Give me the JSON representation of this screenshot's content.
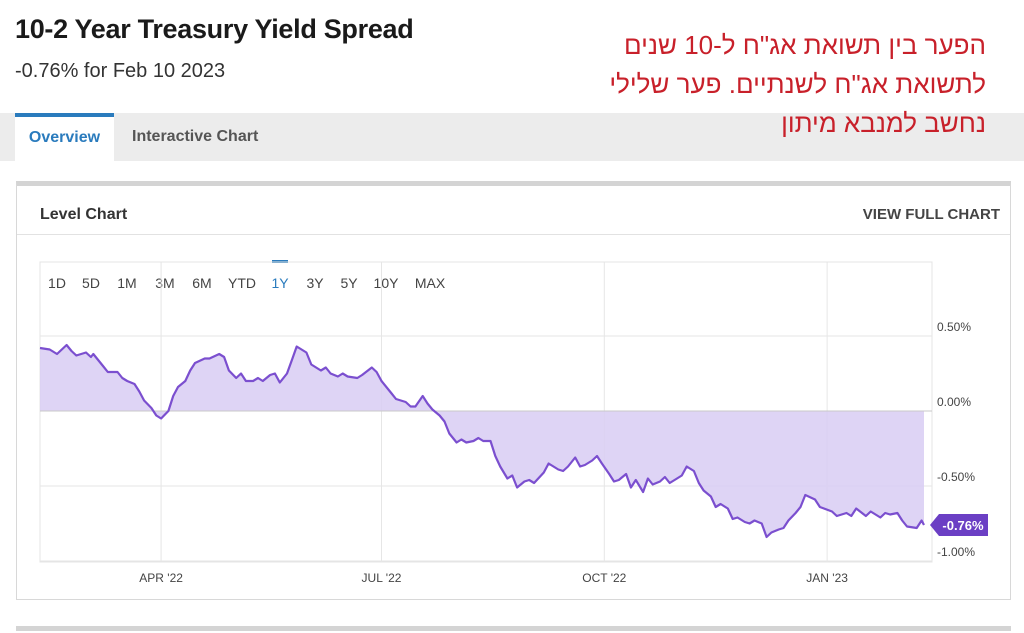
{
  "header": {
    "title": "10-2 Year Treasury Yield Spread",
    "subtitle": "-0.76% for Feb 10 2023"
  },
  "annotation": {
    "lines": [
      "הפער בין תשואת אג\"ח ל-10 שנים",
      "לתשואת אג\"ח לשנתיים. פער שלילי",
      "נחשב למנבא מיתון"
    ]
  },
  "tabs": [
    {
      "label": "Overview",
      "active": true
    },
    {
      "label": "Interactive Chart",
      "active": false
    }
  ],
  "card": {
    "title": "Level Chart",
    "view_full_label": "VIEW FULL CHART"
  },
  "range_buttons": [
    {
      "label": "1D",
      "active": false
    },
    {
      "label": "5D",
      "active": false
    },
    {
      "label": "1M",
      "active": false
    },
    {
      "label": "3M",
      "active": false
    },
    {
      "label": "6M",
      "active": false
    },
    {
      "label": "YTD",
      "active": false
    },
    {
      "label": "1Y",
      "active": true
    },
    {
      "label": "3Y",
      "active": false
    },
    {
      "label": "5Y",
      "active": false
    },
    {
      "label": "10Y",
      "active": false
    },
    {
      "label": "MAX",
      "active": false
    }
  ],
  "colors": {
    "line": "#7b4fcf",
    "fill": "#d8ccf3",
    "badge": "#6b3fc4",
    "accent": "#2a7bbd",
    "annotation": "#c8202a"
  },
  "chart_data": {
    "type": "area",
    "title": "10-2 Year Treasury Yield Spread",
    "ylabel": "",
    "xlabel": "",
    "ylim": [
      -1.0,
      0.6
    ],
    "yticks": [
      "0.50%",
      "0.00%",
      "-0.50%",
      "-1.00%"
    ],
    "ytick_values": [
      0.5,
      0.0,
      -0.5,
      -1.0
    ],
    "xticks": [
      "APR '22",
      "JUL '22",
      "OCT '22",
      "JAN '23"
    ],
    "xtick_dates": [
      "2022-04-01",
      "2022-07-01",
      "2022-10-01",
      "2023-01-01"
    ],
    "last_value_label": "-0.76%",
    "grid": true,
    "series": [
      {
        "values": [
          [
            "2022-02-10",
            0.42
          ],
          [
            "2022-02-14",
            0.41
          ],
          [
            "2022-02-17",
            0.38
          ],
          [
            "2022-02-21",
            0.44
          ],
          [
            "2022-02-23",
            0.4
          ],
          [
            "2022-02-25",
            0.37
          ],
          [
            "2022-03-01",
            0.39
          ],
          [
            "2022-03-03",
            0.36
          ],
          [
            "2022-03-04",
            0.38
          ],
          [
            "2022-03-08",
            0.3
          ],
          [
            "2022-03-10",
            0.26
          ],
          [
            "2022-03-14",
            0.26
          ],
          [
            "2022-03-16",
            0.22
          ],
          [
            "2022-03-18",
            0.2
          ],
          [
            "2022-03-21",
            0.18
          ],
          [
            "2022-03-23",
            0.13
          ],
          [
            "2022-03-25",
            0.07
          ],
          [
            "2022-03-28",
            0.02
          ],
          [
            "2022-03-30",
            -0.03
          ],
          [
            "2022-04-01",
            -0.05
          ],
          [
            "2022-04-04",
            0.0
          ],
          [
            "2022-04-06",
            0.1
          ],
          [
            "2022-04-08",
            0.16
          ],
          [
            "2022-04-11",
            0.2
          ],
          [
            "2022-04-13",
            0.27
          ],
          [
            "2022-04-15",
            0.32
          ],
          [
            "2022-04-19",
            0.35
          ],
          [
            "2022-04-21",
            0.35
          ],
          [
            "2022-04-25",
            0.38
          ],
          [
            "2022-04-27",
            0.36
          ],
          [
            "2022-04-29",
            0.27
          ],
          [
            "2022-05-02",
            0.22
          ],
          [
            "2022-05-04",
            0.25
          ],
          [
            "2022-05-06",
            0.2
          ],
          [
            "2022-05-09",
            0.2
          ],
          [
            "2022-05-11",
            0.22
          ],
          [
            "2022-05-13",
            0.2
          ],
          [
            "2022-05-16",
            0.24
          ],
          [
            "2022-05-18",
            0.25
          ],
          [
            "2022-05-20",
            0.19
          ],
          [
            "2022-05-23",
            0.25
          ],
          [
            "2022-05-25",
            0.34
          ],
          [
            "2022-05-27",
            0.43
          ],
          [
            "2022-05-31",
            0.39
          ],
          [
            "2022-06-02",
            0.31
          ],
          [
            "2022-06-06",
            0.27
          ],
          [
            "2022-06-08",
            0.29
          ],
          [
            "2022-06-10",
            0.25
          ],
          [
            "2022-06-13",
            0.23
          ],
          [
            "2022-06-15",
            0.25
          ],
          [
            "2022-06-17",
            0.23
          ],
          [
            "2022-06-21",
            0.22
          ],
          [
            "2022-06-23",
            0.24
          ],
          [
            "2022-06-27",
            0.29
          ],
          [
            "2022-06-29",
            0.26
          ],
          [
            "2022-07-01",
            0.2
          ],
          [
            "2022-07-05",
            0.12
          ],
          [
            "2022-07-07",
            0.08
          ],
          [
            "2022-07-11",
            0.06
          ],
          [
            "2022-07-13",
            0.03
          ],
          [
            "2022-07-15",
            0.03
          ],
          [
            "2022-07-18",
            0.1
          ],
          [
            "2022-07-20",
            0.05
          ],
          [
            "2022-07-22",
            0.01
          ],
          [
            "2022-07-25",
            -0.03
          ],
          [
            "2022-07-27",
            -0.07
          ],
          [
            "2022-07-29",
            -0.15
          ],
          [
            "2022-08-01",
            -0.21
          ],
          [
            "2022-08-03",
            -0.19
          ],
          [
            "2022-08-05",
            -0.21
          ],
          [
            "2022-08-08",
            -0.2
          ],
          [
            "2022-08-10",
            -0.18
          ],
          [
            "2022-08-12",
            -0.2
          ],
          [
            "2022-08-15",
            -0.2
          ],
          [
            "2022-08-17",
            -0.3
          ],
          [
            "2022-08-19",
            -0.37
          ],
          [
            "2022-08-22",
            -0.45
          ],
          [
            "2022-08-24",
            -0.43
          ],
          [
            "2022-08-26",
            -0.51
          ],
          [
            "2022-08-29",
            -0.47
          ],
          [
            "2022-08-31",
            -0.46
          ],
          [
            "2022-09-02",
            -0.48
          ],
          [
            "2022-09-06",
            -0.41
          ],
          [
            "2022-09-08",
            -0.35
          ],
          [
            "2022-09-12",
            -0.39
          ],
          [
            "2022-09-14",
            -0.4
          ],
          [
            "2022-09-16",
            -0.37
          ],
          [
            "2022-09-19",
            -0.31
          ],
          [
            "2022-09-21",
            -0.37
          ],
          [
            "2022-09-23",
            -0.36
          ],
          [
            "2022-09-26",
            -0.33
          ],
          [
            "2022-09-28",
            -0.3
          ],
          [
            "2022-09-30",
            -0.35
          ],
          [
            "2022-10-03",
            -0.42
          ],
          [
            "2022-10-05",
            -0.47
          ],
          [
            "2022-10-07",
            -0.46
          ],
          [
            "2022-10-10",
            -0.42
          ],
          [
            "2022-10-12",
            -0.51
          ],
          [
            "2022-10-14",
            -0.46
          ],
          [
            "2022-10-17",
            -0.54
          ],
          [
            "2022-10-19",
            -0.45
          ],
          [
            "2022-10-21",
            -0.49
          ],
          [
            "2022-10-24",
            -0.47
          ],
          [
            "2022-10-26",
            -0.44
          ],
          [
            "2022-10-28",
            -0.48
          ],
          [
            "2022-10-31",
            -0.45
          ],
          [
            "2022-11-02",
            -0.43
          ],
          [
            "2022-11-04",
            -0.37
          ],
          [
            "2022-11-07",
            -0.4
          ],
          [
            "2022-11-09",
            -0.48
          ],
          [
            "2022-11-11",
            -0.53
          ],
          [
            "2022-11-14",
            -0.57
          ],
          [
            "2022-11-16",
            -0.64
          ],
          [
            "2022-11-18",
            -0.62
          ],
          [
            "2022-11-21",
            -0.65
          ],
          [
            "2022-11-23",
            -0.72
          ],
          [
            "2022-11-25",
            -0.71
          ],
          [
            "2022-11-28",
            -0.74
          ],
          [
            "2022-11-30",
            -0.75
          ],
          [
            "2022-12-02",
            -0.73
          ],
          [
            "2022-12-05",
            -0.75
          ],
          [
            "2022-12-07",
            -0.84
          ],
          [
            "2022-12-09",
            -0.81
          ],
          [
            "2022-12-12",
            -0.79
          ],
          [
            "2022-12-14",
            -0.78
          ],
          [
            "2022-12-16",
            -0.73
          ],
          [
            "2022-12-19",
            -0.68
          ],
          [
            "2022-12-21",
            -0.64
          ],
          [
            "2022-12-23",
            -0.56
          ],
          [
            "2022-12-27",
            -0.59
          ],
          [
            "2022-12-29",
            -0.64
          ],
          [
            "2023-01-03",
            -0.67
          ],
          [
            "2023-01-05",
            -0.7
          ],
          [
            "2023-01-09",
            -0.68
          ],
          [
            "2023-01-11",
            -0.7
          ],
          [
            "2023-01-13",
            -0.65
          ],
          [
            "2023-01-17",
            -0.7
          ],
          [
            "2023-01-19",
            -0.67
          ],
          [
            "2023-01-23",
            -0.71
          ],
          [
            "2023-01-25",
            -0.68
          ],
          [
            "2023-01-27",
            -0.69
          ],
          [
            "2023-01-30",
            -0.68
          ],
          [
            "2023-02-01",
            -0.73
          ],
          [
            "2023-02-03",
            -0.77
          ],
          [
            "2023-02-07",
            -0.78
          ],
          [
            "2023-02-09",
            -0.73
          ],
          [
            "2023-02-10",
            -0.76
          ]
        ]
      }
    ]
  }
}
